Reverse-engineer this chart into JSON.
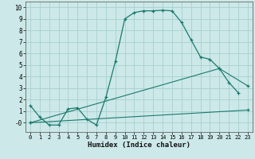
{
  "xlabel": "Humidex (Indice chaleur)",
  "bg_color": "#cce8e8",
  "grid_color": "#a8d0d0",
  "line_color": "#1a7a6e",
  "xlim": [
    -0.5,
    23.5
  ],
  "ylim": [
    -0.8,
    10.5
  ],
  "xticks": [
    0,
    1,
    2,
    3,
    4,
    5,
    6,
    7,
    8,
    9,
    10,
    11,
    12,
    13,
    14,
    15,
    16,
    17,
    18,
    19,
    20,
    21,
    22,
    23
  ],
  "yticks": [
    0,
    1,
    2,
    3,
    4,
    5,
    6,
    7,
    8,
    9,
    10
  ],
  "ytick_labels": [
    "-0",
    "1",
    "2",
    "3",
    "4",
    "5",
    "6",
    "7",
    "8",
    "9",
    "10"
  ],
  "series0": {
    "x": [
      0,
      1,
      2,
      3,
      4,
      5,
      6,
      7,
      8,
      9,
      10,
      11,
      12,
      13,
      14,
      15,
      16,
      17,
      18,
      19,
      20,
      21,
      22
    ],
    "y": [
      1.5,
      0.5,
      -0.2,
      -0.2,
      1.2,
      1.3,
      0.3,
      -0.2,
      2.2,
      5.3,
      9.0,
      9.55,
      9.7,
      9.7,
      9.75,
      9.7,
      8.7,
      7.2,
      5.7,
      5.5,
      4.7,
      3.5,
      2.6
    ]
  },
  "series1": {
    "x": [
      0,
      23
    ],
    "y": [
      0.0,
      1.1
    ]
  },
  "series2": {
    "x": [
      0,
      20,
      23
    ],
    "y": [
      0.0,
      4.7,
      3.2
    ]
  }
}
